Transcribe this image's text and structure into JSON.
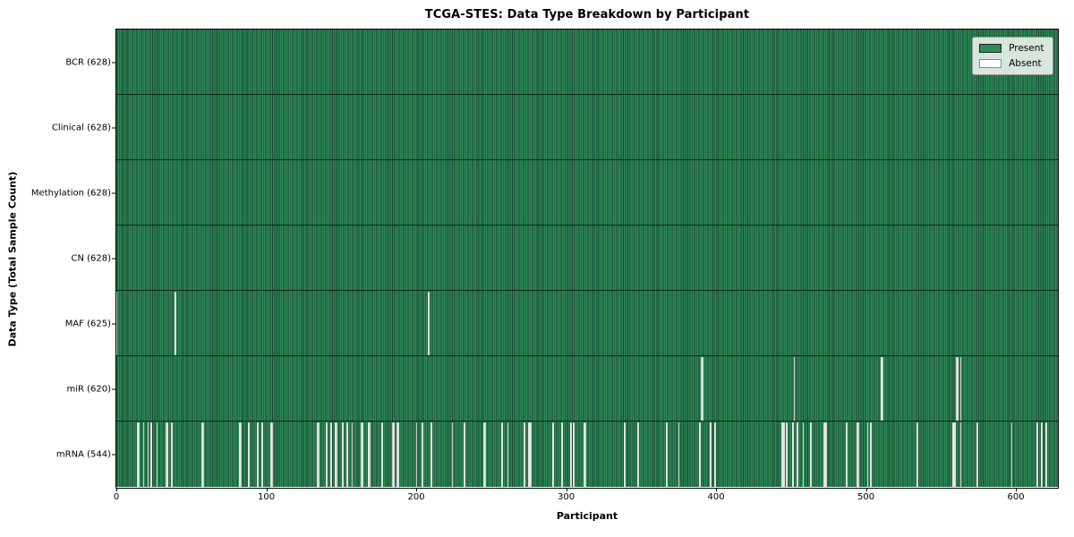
{
  "chart_data": {
    "type": "heatmap",
    "title": "TCGA-STES: Data Type Breakdown by Participant",
    "xlabel": "Participant",
    "ylabel": "Data Type (Total Sample Count)",
    "x_axis": {
      "min": 0,
      "max": 628,
      "ticks": [
        0,
        100,
        200,
        300,
        400,
        500,
        600
      ]
    },
    "legend": {
      "present": "Present",
      "absent": "Absent",
      "position": "upper right"
    },
    "colors": {
      "present_fill": "#2e8b57",
      "bar_edge": "#16432c",
      "absent_fill": "#ffffff",
      "row_separator": "#0c1f14",
      "legend_bg": "#ecefec",
      "legend_border": "#9a9a9a"
    },
    "rows": [
      {
        "data_type": "BCR",
        "label": "BCR (628)",
        "total_samples": 628,
        "present_count": 628,
        "absent_count": 0,
        "absent_participants": []
      },
      {
        "data_type": "Clinical",
        "label": "Clinical (628)",
        "total_samples": 628,
        "present_count": 628,
        "absent_count": 0,
        "absent_participants": []
      },
      {
        "data_type": "Methylation",
        "label": "Methylation (628)",
        "total_samples": 628,
        "present_count": 628,
        "absent_count": 0,
        "absent_participants": []
      },
      {
        "data_type": "CN",
        "label": "CN (628)",
        "total_samples": 628,
        "present_count": 628,
        "absent_count": 0,
        "absent_participants": []
      },
      {
        "data_type": "MAF",
        "label": "MAF (625)",
        "total_samples": 628,
        "present_count": 625,
        "absent_count": 3,
        "absent_participants": [
          0,
          39,
          208
        ]
      },
      {
        "data_type": "miR",
        "label": "miR (620)",
        "total_samples": 628,
        "present_count": 620,
        "absent_count": 8,
        "absent_participants": [
          390,
          391,
          452,
          510,
          511,
          560,
          561,
          563
        ]
      },
      {
        "data_type": "mRNA",
        "label": "mRNA (544)",
        "total_samples": 628,
        "present_count": 544,
        "absent_count": 84,
        "absent_participants": [
          14,
          15,
          18,
          21,
          23,
          27,
          33,
          34,
          37,
          57,
          58,
          82,
          83,
          88,
          94,
          97,
          103,
          104,
          134,
          135,
          140,
          143,
          146,
          147,
          151,
          154,
          157,
          163,
          164,
          168,
          169,
          177,
          184,
          185,
          187,
          188,
          200,
          204,
          210,
          224,
          232,
          245,
          246,
          257,
          261,
          272,
          275,
          276,
          291,
          297,
          303,
          305,
          312,
          313,
          339,
          348,
          367,
          375,
          389,
          396,
          399,
          444,
          445,
          447,
          451,
          454,
          458,
          463,
          472,
          473,
          487,
          494,
          495,
          501,
          503,
          534,
          558,
          559,
          563,
          574,
          597,
          614,
          617,
          620
        ]
      }
    ]
  }
}
